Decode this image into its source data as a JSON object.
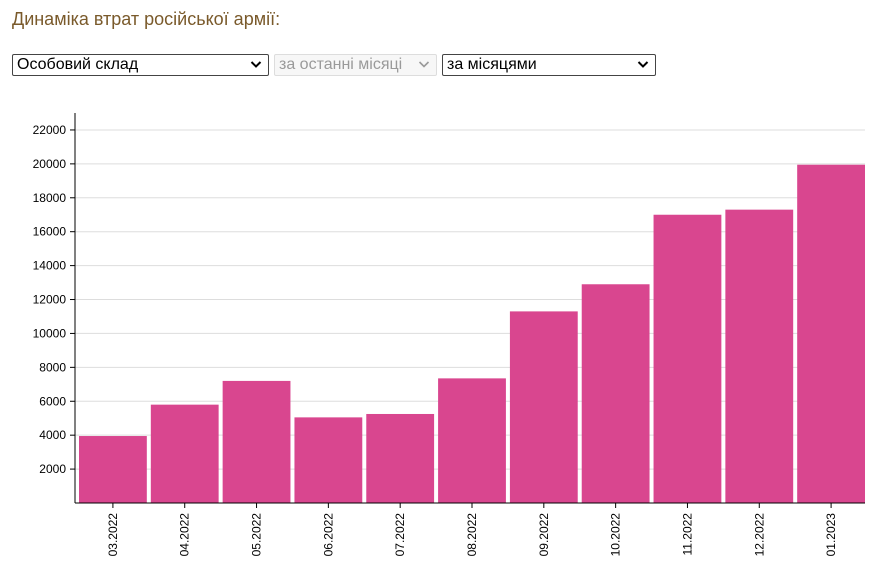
{
  "header": {
    "title": "Динаміка втрат російської армії:"
  },
  "filters": {
    "category": "Особовий склад",
    "period": "за останні місяці",
    "grouping": "за місяцями"
  },
  "colors": {
    "bar": "#d9468f",
    "grid": "#dddddd",
    "axis": "#000000",
    "title": "#7a5a2b"
  },
  "chart_data": {
    "type": "bar",
    "categories": [
      "03.2022",
      "04.2022",
      "05.2022",
      "06.2022",
      "07.2022",
      "08.2022",
      "09.2022",
      "10.2022",
      "11.2022",
      "12.2022",
      "01.2023"
    ],
    "values": [
      3950,
      5800,
      7200,
      5050,
      5250,
      7350,
      11300,
      12900,
      17000,
      17300,
      19950
    ],
    "title": "",
    "xlabel": "",
    "ylabel": "",
    "ylim": [
      0,
      23000
    ],
    "yticks": [
      2000,
      4000,
      6000,
      8000,
      10000,
      12000,
      14000,
      16000,
      18000,
      20000,
      22000
    ],
    "grid": true,
    "legend": "none"
  }
}
